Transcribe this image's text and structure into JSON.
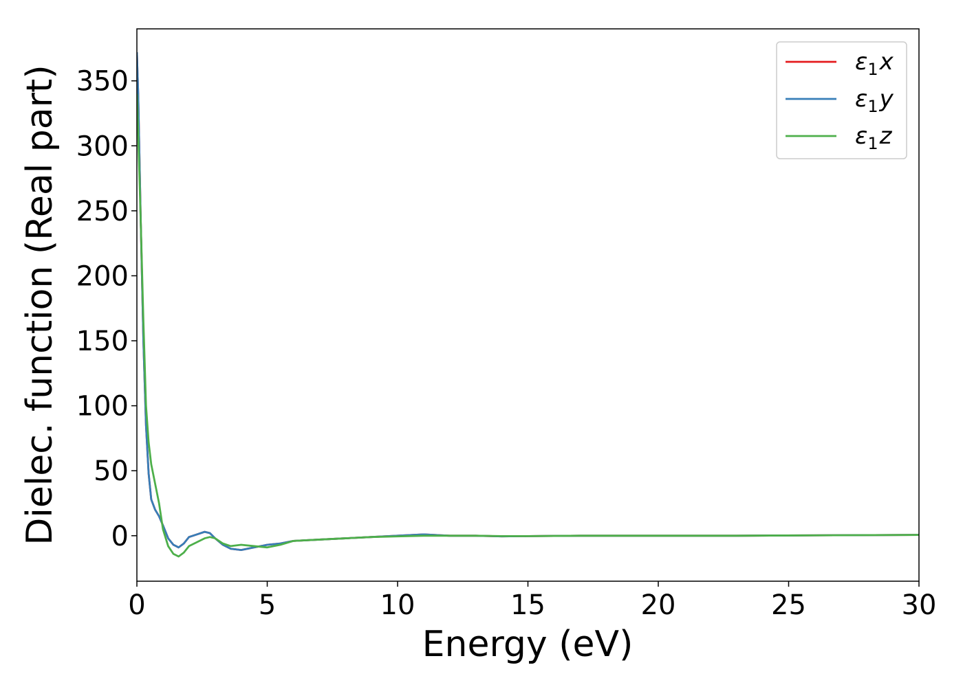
{
  "chart_data": {
    "type": "line",
    "title": "",
    "xlabel": "Energy (eV)",
    "ylabel": "Dielec. function (Real part)",
    "xlim": [
      0,
      30
    ],
    "ylim": [
      -35,
      390
    ],
    "xticks": [
      0,
      5,
      10,
      15,
      20,
      25,
      30
    ],
    "yticks": [
      0,
      50,
      100,
      150,
      200,
      250,
      300,
      350
    ],
    "grid": false,
    "legend": "top-right",
    "series": [
      {
        "name": "ε₁x",
        "legend_symbol": "ε",
        "legend_sub": "1",
        "legend_var": "x",
        "color": "#e41a1c",
        "x": [
          0.0,
          0.05,
          0.15,
          0.25,
          0.35,
          0.45,
          0.55,
          0.7,
          0.85,
          1.0,
          1.2,
          1.4,
          1.6,
          1.8,
          2.0,
          2.3,
          2.6,
          2.8,
          3.0,
          3.3,
          3.6,
          4.0,
          4.5,
          5.0,
          5.5,
          6.0,
          7.0,
          8.0,
          9.0,
          10.0,
          11.0,
          12.0,
          13.0,
          14.0,
          15.0,
          17.0,
          20.0,
          23.0,
          26.0,
          30.0
        ],
        "y": [
          372,
          340,
          240,
          150,
          85,
          48,
          28,
          20,
          15,
          8,
          -2,
          -7,
          -9,
          -6,
          -1,
          1,
          3,
          2,
          -2,
          -7,
          -10,
          -11,
          -9,
          -7,
          -6,
          -4,
          -3,
          -2,
          -1,
          0,
          1,
          0,
          0,
          -0.5,
          -0.3,
          0,
          0,
          0,
          0.3,
          0.6
        ]
      },
      {
        "name": "ε₁y",
        "legend_symbol": "ε",
        "legend_sub": "1",
        "legend_var": "y",
        "color": "#377eb8",
        "x": [
          0.0,
          0.05,
          0.15,
          0.25,
          0.35,
          0.45,
          0.55,
          0.7,
          0.85,
          1.0,
          1.2,
          1.4,
          1.6,
          1.8,
          2.0,
          2.3,
          2.6,
          2.8,
          3.0,
          3.3,
          3.6,
          4.0,
          4.5,
          5.0,
          5.5,
          6.0,
          7.0,
          8.0,
          9.0,
          10.0,
          11.0,
          12.0,
          13.0,
          14.0,
          15.0,
          17.0,
          20.0,
          23.0,
          26.0,
          30.0
        ],
        "y": [
          372,
          340,
          240,
          150,
          85,
          48,
          28,
          20,
          15,
          8,
          -2,
          -7,
          -9,
          -6,
          -1,
          1,
          3,
          2,
          -2,
          -7,
          -10,
          -11,
          -9,
          -7,
          -6,
          -4,
          -3,
          -2,
          -1,
          0,
          1,
          0,
          0,
          -0.5,
          -0.3,
          0,
          0,
          0,
          0.3,
          0.6
        ]
      },
      {
        "name": "ε₁z",
        "legend_symbol": "ε",
        "legend_sub": "1",
        "legend_var": "z",
        "color": "#4daf4a",
        "x": [
          0.0,
          0.05,
          0.15,
          0.25,
          0.35,
          0.45,
          0.55,
          0.7,
          0.85,
          1.0,
          1.2,
          1.4,
          1.6,
          1.8,
          2.0,
          2.3,
          2.6,
          2.8,
          3.0,
          3.3,
          3.6,
          4.0,
          4.5,
          5.0,
          5.5,
          6.0,
          7.0,
          8.0,
          9.0,
          10.0,
          11.0,
          12.0,
          13.0,
          14.0,
          15.0,
          17.0,
          20.0,
          23.0,
          26.0,
          30.0
        ],
        "y": [
          340,
          310,
          240,
          165,
          100,
          72,
          55,
          40,
          25,
          5,
          -8,
          -14,
          -16,
          -13,
          -8,
          -5,
          -2,
          -1,
          -2,
          -6,
          -8,
          -7,
          -8,
          -9,
          -7,
          -4,
          -3,
          -2,
          -1,
          -0.5,
          0,
          0,
          0,
          -0.3,
          -0.3,
          0,
          0,
          0,
          0.3,
          0.6
        ]
      }
    ]
  }
}
